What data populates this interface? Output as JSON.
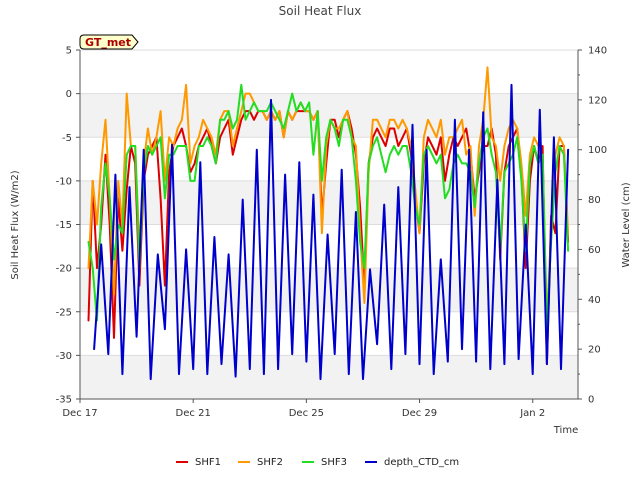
{
  "chart_data": {
    "type": "line",
    "title": "Soil Heat Flux",
    "badge": "GT_met",
    "xlabel": "Time",
    "ylabel": "Soil Heat Flux (W/m2)",
    "y2label": "Water Level (cm)",
    "xlim": [
      0,
      17.6
    ],
    "ylim": [
      -35,
      5
    ],
    "y2lim": [
      0,
      140
    ],
    "x_ticks": [
      {
        "x": 0,
        "label": "Dec 17"
      },
      {
        "x": 4,
        "label": "Dec 21"
      },
      {
        "x": 8,
        "label": "Dec 25"
      },
      {
        "x": 12,
        "label": "Dec 29"
      },
      {
        "x": 16,
        "label": "Jan 2"
      }
    ],
    "y_ticks": [
      -35,
      -30,
      -25,
      -20,
      -15,
      -10,
      -5,
      0,
      5
    ],
    "y2_ticks": [
      0,
      20,
      40,
      60,
      80,
      100,
      120,
      140
    ],
    "bands": [
      [
        -35,
        -30
      ],
      [
        -25,
        -20
      ],
      [
        -15,
        -10
      ],
      [
        -5,
        0
      ]
    ],
    "series": [
      {
        "name": "SHF1",
        "axis": "left",
        "color": "#dd0000",
        "x": [
          0.3,
          0.45,
          0.6,
          0.75,
          0.9,
          1.05,
          1.2,
          1.35,
          1.5,
          1.65,
          1.8,
          1.95,
          2.1,
          2.25,
          2.4,
          2.55,
          2.7,
          2.85,
          3.0,
          3.15,
          3.3,
          3.45,
          3.6,
          3.75,
          3.9,
          4.05,
          4.2,
          4.35,
          4.5,
          4.65,
          4.8,
          4.95,
          5.1,
          5.25,
          5.4,
          5.55,
          5.7,
          5.85,
          6.0,
          6.15,
          6.3,
          6.45,
          6.6,
          6.75,
          6.9,
          7.05,
          7.2,
          7.35,
          7.5,
          7.65,
          7.8,
          7.95,
          8.1,
          8.25,
          8.4,
          8.55,
          8.7,
          8.85,
          9.0,
          9.15,
          9.3,
          9.45,
          9.6,
          9.75,
          9.9,
          10.05,
          10.2,
          10.35,
          10.5,
          10.65,
          10.8,
          10.95,
          11.1,
          11.25,
          11.4,
          11.55,
          11.7,
          11.85,
          12.0,
          12.15,
          12.3,
          12.45,
          12.6,
          12.75,
          12.9,
          13.05,
          13.2,
          13.35,
          13.5,
          13.65,
          13.8,
          13.95,
          14.1,
          14.25,
          14.4,
          14.55,
          14.7,
          14.85,
          15.0,
          15.15,
          15.3,
          15.45,
          15.6,
          15.75,
          15.9,
          16.05,
          16.2,
          16.35,
          16.5,
          16.65,
          16.8,
          16.95,
          17.1,
          17.25
        ],
        "values": [
          -26,
          -10,
          -20,
          -15,
          -7,
          -15,
          -28,
          -12,
          -18,
          -11,
          -6,
          -8,
          -22,
          -10,
          -7,
          -6,
          -5,
          -12,
          -22,
          -9,
          -6,
          -5,
          -4,
          -6,
          -9,
          -8,
          -6,
          -5,
          -4,
          -6,
          -8,
          -5,
          -4,
          -3,
          -7,
          -5,
          -3,
          -2,
          -2,
          -3,
          -2,
          -2,
          -3,
          -2,
          -3,
          -2,
          -5,
          -2,
          -3,
          -2,
          -2,
          -2,
          -2,
          -3,
          -2,
          -14,
          -8,
          -3,
          -3,
          -5,
          -3,
          -2,
          -4,
          -7,
          -13,
          -22,
          -8,
          -5,
          -4,
          -5,
          -6,
          -4,
          -4,
          -6,
          -5,
          -4,
          -7,
          -12,
          -16,
          -8,
          -5,
          -6,
          -7,
          -5,
          -10,
          -7,
          -5,
          -6,
          -5,
          -4,
          -7,
          -12,
          -9,
          -6,
          -6,
          -4,
          -7,
          -19,
          -9,
          -6,
          -5,
          -4,
          -9,
          -20,
          -10,
          -6,
          -8,
          -6,
          -31,
          -14,
          -16,
          -6,
          -6,
          -17
        ]
      },
      {
        "name": "SHF2",
        "axis": "left",
        "color": "#ff9900",
        "x": [
          0.3,
          0.45,
          0.6,
          0.75,
          0.9,
          1.05,
          1.2,
          1.35,
          1.5,
          1.65,
          1.8,
          1.95,
          2.1,
          2.25,
          2.4,
          2.55,
          2.7,
          2.85,
          3.0,
          3.15,
          3.3,
          3.45,
          3.6,
          3.75,
          3.9,
          4.05,
          4.2,
          4.35,
          4.5,
          4.65,
          4.8,
          4.95,
          5.1,
          5.25,
          5.4,
          5.55,
          5.7,
          5.85,
          6.0,
          6.15,
          6.3,
          6.45,
          6.6,
          6.75,
          6.9,
          7.05,
          7.2,
          7.35,
          7.5,
          7.65,
          7.8,
          7.95,
          8.1,
          8.25,
          8.4,
          8.55,
          8.7,
          8.85,
          9.0,
          9.15,
          9.3,
          9.45,
          9.6,
          9.75,
          9.9,
          10.05,
          10.2,
          10.35,
          10.5,
          10.65,
          10.8,
          10.95,
          11.1,
          11.25,
          11.4,
          11.55,
          11.7,
          11.85,
          12.0,
          12.15,
          12.3,
          12.45,
          12.6,
          12.75,
          12.9,
          13.05,
          13.2,
          13.35,
          13.5,
          13.65,
          13.8,
          13.95,
          14.1,
          14.25,
          14.4,
          14.55,
          14.7,
          14.85,
          15.0,
          15.15,
          15.3,
          15.45,
          15.6,
          15.75,
          15.9,
          16.05,
          16.2,
          16.35,
          16.5,
          16.65,
          16.8,
          16.95,
          17.1,
          17.25
        ],
        "values": [
          -20,
          -10,
          -15,
          -8,
          -3,
          -12,
          -23,
          -10,
          -15,
          0,
          -6,
          -6,
          -18,
          -8,
          -4,
          -7,
          -5,
          -2,
          -10,
          -5,
          -6,
          -4,
          -3,
          1,
          -8,
          -6,
          -5,
          -3,
          -4,
          -5,
          -7,
          -3,
          -2,
          -2,
          -6,
          -4,
          -2,
          0,
          0,
          -1,
          -2,
          -2,
          -3,
          -2,
          -3,
          -2,
          -5,
          -2,
          -3,
          -2,
          -1,
          -2,
          -2,
          -3,
          -2,
          -16,
          -6,
          -3,
          -4,
          -4,
          -3,
          -2,
          -5,
          -6,
          -16,
          -24,
          -9,
          -3,
          -3,
          -4,
          -5,
          -3,
          -3,
          -4,
          -3,
          -4,
          -6,
          -11,
          -16,
          -5,
          -3,
          -4,
          -5,
          -3,
          -7,
          -5,
          -5,
          -4,
          -3,
          -7,
          -6,
          -14,
          -6,
          -3,
          3,
          -5,
          -6,
          -10,
          -6,
          -4,
          -3,
          -4,
          -8,
          -14,
          -7,
          -5,
          -6,
          -8,
          -26,
          -16,
          -7,
          -5,
          -6,
          -16
        ]
      },
      {
        "name": "SHF3",
        "axis": "left",
        "color": "#22dd22",
        "x": [
          0.3,
          0.45,
          0.6,
          0.75,
          0.9,
          1.05,
          1.2,
          1.35,
          1.5,
          1.65,
          1.8,
          1.95,
          2.1,
          2.25,
          2.4,
          2.55,
          2.7,
          2.85,
          3.0,
          3.15,
          3.3,
          3.45,
          3.6,
          3.75,
          3.9,
          4.05,
          4.2,
          4.35,
          4.5,
          4.65,
          4.8,
          4.95,
          5.1,
          5.25,
          5.4,
          5.55,
          5.7,
          5.85,
          6.0,
          6.15,
          6.3,
          6.45,
          6.6,
          6.75,
          6.9,
          7.05,
          7.2,
          7.35,
          7.5,
          7.65,
          7.8,
          7.95,
          8.1,
          8.25,
          8.4,
          8.55,
          8.7,
          8.85,
          9.0,
          9.15,
          9.3,
          9.45,
          9.6,
          9.75,
          9.9,
          10.05,
          10.2,
          10.35,
          10.5,
          10.65,
          10.8,
          10.95,
          11.1,
          11.25,
          11.4,
          11.55,
          11.7,
          11.85,
          12.0,
          12.15,
          12.3,
          12.45,
          12.6,
          12.75,
          12.9,
          13.05,
          13.2,
          13.35,
          13.5,
          13.65,
          13.8,
          13.95,
          14.1,
          14.25,
          14.4,
          14.55,
          14.7,
          14.85,
          15.0,
          15.15,
          15.3,
          15.45,
          15.6,
          15.75,
          15.9,
          16.05,
          16.2,
          16.35,
          16.5,
          16.65,
          16.8,
          16.95,
          17.1,
          17.25
        ],
        "values": [
          -17,
          -20,
          -26,
          -13,
          -8,
          -12,
          -19,
          -15,
          -16,
          -7,
          -6,
          -6,
          -20,
          -9,
          -6,
          -7,
          -6,
          -5,
          -12,
          -7,
          -7,
          -6,
          -6,
          -6,
          -10,
          -10,
          -6,
          -6,
          -5,
          -6,
          -8,
          -3,
          -3,
          -2,
          -4,
          -3,
          1,
          -3,
          -2,
          -1,
          -2,
          -2,
          -2,
          -1,
          -2,
          -3,
          -4,
          -2,
          0,
          -2,
          -1,
          -2,
          -1,
          -7,
          -2,
          -10,
          -5,
          -3,
          -4,
          -6,
          -3,
          -3,
          -5,
          -10,
          -17,
          -20,
          -8,
          -6,
          -5,
          -7,
          -9,
          -7,
          -6,
          -7,
          -6,
          -6,
          -9,
          -13,
          -15,
          -7,
          -6,
          -7,
          -8,
          -7,
          -12,
          -11,
          -8,
          -7,
          -8,
          -8,
          -9,
          -13,
          -8,
          -5,
          -4,
          -7,
          -9,
          -18,
          -9,
          -8,
          -7,
          -5,
          -10,
          -18,
          -8,
          -6,
          -8,
          -7,
          -27,
          -17,
          -9,
          -6,
          -7,
          -18
        ]
      },
      {
        "name": "depth_CTD_cm",
        "axis": "right",
        "color": "#0000cc",
        "x": [
          0.5,
          0.75,
          1.0,
          1.25,
          1.5,
          1.75,
          2.0,
          2.25,
          2.5,
          2.75,
          3.0,
          3.25,
          3.5,
          3.75,
          4.0,
          4.25,
          4.5,
          4.75,
          5.0,
          5.25,
          5.5,
          5.75,
          6.0,
          6.25,
          6.5,
          6.75,
          7.0,
          7.25,
          7.5,
          7.75,
          8.0,
          8.25,
          8.5,
          8.75,
          9.0,
          9.25,
          9.5,
          9.75,
          10.0,
          10.25,
          10.5,
          10.75,
          11.0,
          11.25,
          11.5,
          11.75,
          12.0,
          12.25,
          12.5,
          12.75,
          13.0,
          13.25,
          13.5,
          13.75,
          14.0,
          14.25,
          14.5,
          14.75,
          15.0,
          15.25,
          15.5,
          15.75,
          16.0,
          16.25,
          16.5,
          16.75,
          17.0,
          17.25
        ],
        "values": [
          20,
          62,
          18,
          90,
          10,
          85,
          25,
          100,
          8,
          58,
          28,
          102,
          10,
          60,
          12,
          95,
          10,
          65,
          14,
          58,
          9,
          80,
          12,
          100,
          10,
          120,
          12,
          90,
          18,
          95,
          15,
          82,
          8,
          66,
          18,
          92,
          10,
          75,
          8,
          52,
          22,
          78,
          12,
          85,
          18,
          110,
          14,
          100,
          10,
          56,
          15,
          112,
          20,
          100,
          15,
          115,
          12,
          88,
          14,
          126,
          16,
          70,
          10,
          116,
          14,
          105,
          12,
          100
        ]
      }
    ]
  }
}
